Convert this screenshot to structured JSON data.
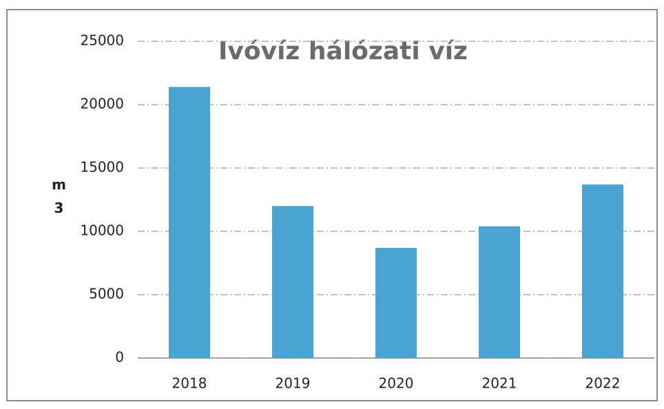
{
  "chart_data": {
    "type": "bar",
    "title": "Ivóvíz hálózati víz",
    "ylabel": "m3",
    "categories": [
      "2018",
      "2019",
      "2020",
      "2021",
      "2022"
    ],
    "values": [
      21400,
      12000,
      8700,
      10400,
      13700
    ],
    "color": "#4ba3d3",
    "ylim": [
      0,
      25000
    ],
    "yticks": [
      0,
      5000,
      10000,
      15000,
      20000,
      25000
    ],
    "grid": true
  }
}
